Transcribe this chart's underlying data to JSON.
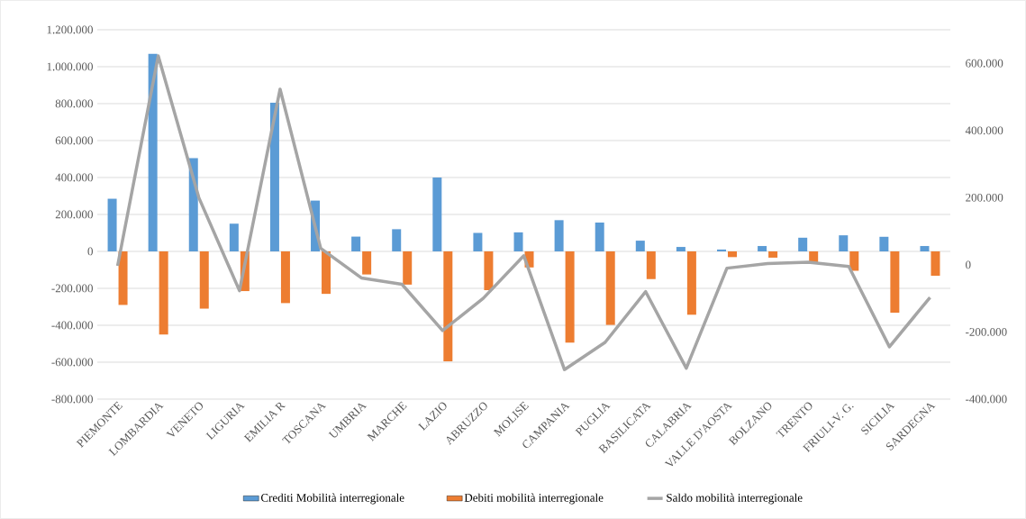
{
  "chart_data": {
    "type": "bar",
    "categories": [
      "PIEMONTE",
      "LOMBARDIA",
      "VENETO",
      "LIGURIA",
      "EMILIA R",
      "TOSCANA",
      "UMBRIA",
      "MARCHE",
      "LAZIO",
      "ABRUZZO",
      "MOLISE",
      "CAMPANIA",
      "PUGLIA",
      "BASILICATA",
      "CALABRIA",
      "VALLE D'AOSTA",
      "BOLZANO",
      "TRENTO",
      "FRIULI-V. G.",
      "SICILIA",
      "SARDEGNA"
    ],
    "series": [
      {
        "name": "Crediti Mobilità interregionale",
        "color": "#5b9bd5",
        "values": [
          285000,
          1070000,
          505000,
          150000,
          805000,
          275000,
          80000,
          120000,
          400000,
          100000,
          103000,
          169000,
          156000,
          58000,
          24000,
          10000,
          29000,
          74000,
          87000,
          79000,
          29000
        ]
      },
      {
        "name": "Debiti mobilità interregionale",
        "color": "#ed7d31",
        "values": [
          -290000,
          -450000,
          -310000,
          -215000,
          -280000,
          -230000,
          -125000,
          -180000,
          -595000,
          -210000,
          -87000,
          -494000,
          -398000,
          -150000,
          -343000,
          -31000,
          -34000,
          -66000,
          -105000,
          -332000,
          -132000
        ]
      },
      {
        "name": "Saldo mobilità interregionale",
        "color": "#a5a5a5",
        "type": "line",
        "axis": "y2",
        "values": [
          -3000,
          622000,
          200000,
          -77000,
          523000,
          49000,
          -39000,
          -58000,
          -196000,
          -100000,
          27000,
          -312000,
          -231000,
          -80000,
          -308000,
          -10000,
          4000,
          8000,
          -5000,
          -244000,
          -97000
        ]
      }
    ],
    "ylim": [
      -800000,
      1200000
    ],
    "yticks": [
      {
        "value": -800000,
        "label": "-800.000"
      },
      {
        "value": -600000,
        "label": "-600.000"
      },
      {
        "value": -400000,
        "label": "-400.000"
      },
      {
        "value": -200000,
        "label": "-200.000"
      },
      {
        "value": 0,
        "label": "0"
      },
      {
        "value": 200000,
        "label": "200.000"
      },
      {
        "value": 400000,
        "label": "400.000"
      },
      {
        "value": 600000,
        "label": "600.000"
      },
      {
        "value": 800000,
        "label": "800.000"
      },
      {
        "value": 1000000,
        "label": "1.000.000"
      },
      {
        "value": 1200000,
        "label": "1.200.000"
      }
    ],
    "y2lim": [
      -400000,
      700000
    ],
    "y2ticks": [
      {
        "value": -400000,
        "label": "-400.000"
      },
      {
        "value": -200000,
        "label": "-200.000"
      },
      {
        "value": 0,
        "label": "0"
      },
      {
        "value": 200000,
        "label": "200.000"
      },
      {
        "value": 400000,
        "label": "400.000"
      },
      {
        "value": 600000,
        "label": "600.000"
      }
    ],
    "grid": "y",
    "legend": "bottom"
  }
}
